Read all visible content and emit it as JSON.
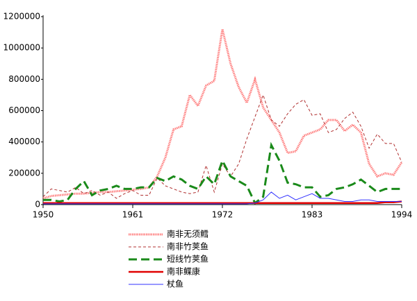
{
  "chart_data": {
    "type": "line",
    "x": [
      1950,
      1951,
      1952,
      1953,
      1954,
      1955,
      1956,
      1957,
      1958,
      1959,
      1960,
      1961,
      1962,
      1963,
      1964,
      1965,
      1966,
      1967,
      1968,
      1969,
      1970,
      1971,
      1972,
      1973,
      1974,
      1975,
      1976,
      1977,
      1978,
      1979,
      1980,
      1981,
      1982,
      1983,
      1984,
      1985,
      1986,
      1987,
      1988,
      1989,
      1990,
      1991,
      1992,
      1993,
      1994
    ],
    "xlim": [
      1950,
      1994
    ],
    "xticks": [
      1950,
      1961,
      1972,
      1983,
      1994
    ],
    "ylim": [
      0,
      1200000
    ],
    "yticks": [
      0,
      200000,
      400000,
      600000,
      800000,
      1000000,
      1200000
    ],
    "grid": false,
    "series": [
      {
        "name": "南非无须鳕",
        "color": "#ff6f6f",
        "line_style": "dotted",
        "values": [
          40000,
          55000,
          60000,
          65000,
          70000,
          70000,
          75000,
          80000,
          80000,
          85000,
          90000,
          95000,
          100000,
          110000,
          180000,
          300000,
          480000,
          500000,
          700000,
          630000,
          760000,
          790000,
          1120000,
          900000,
          750000,
          650000,
          800000,
          620000,
          540000,
          460000,
          330000,
          340000,
          440000,
          460000,
          480000,
          540000,
          540000,
          470000,
          510000,
          460000,
          260000,
          180000,
          200000,
          190000,
          270000
        ]
      },
      {
        "name": "南非竹荚鱼",
        "color": "#b03030",
        "line_style": "dashed",
        "values": [
          50000,
          100000,
          90000,
          80000,
          110000,
          70000,
          90000,
          60000,
          80000,
          40000,
          70000,
          90000,
          60000,
          60000,
          170000,
          120000,
          100000,
          80000,
          70000,
          80000,
          250000,
          80000,
          260000,
          180000,
          260000,
          420000,
          560000,
          700000,
          540000,
          500000,
          580000,
          640000,
          670000,
          570000,
          580000,
          460000,
          480000,
          550000,
          590000,
          500000,
          360000,
          450000,
          390000,
          390000,
          270000
        ]
      },
      {
        "name": "短线竹荚鱼",
        "color": "#1a8a1a",
        "line_style": "long-dashed",
        "values": [
          30000,
          30000,
          20000,
          30000,
          100000,
          150000,
          60000,
          90000,
          100000,
          120000,
          100000,
          100000,
          110000,
          110000,
          170000,
          150000,
          180000,
          160000,
          120000,
          100000,
          180000,
          130000,
          280000,
          180000,
          150000,
          120000,
          10000,
          50000,
          380000,
          280000,
          140000,
          130000,
          110000,
          110000,
          50000,
          60000,
          100000,
          110000,
          130000,
          160000,
          120000,
          80000,
          100000,
          100000,
          100000
        ]
      },
      {
        "name": "南非鲽康",
        "color": "#e00000",
        "line_style": "solid",
        "values": [
          10000,
          10000,
          10000,
          10000,
          10000,
          10000,
          10000,
          10000,
          10000,
          10000,
          10000,
          10000,
          10000,
          10000,
          10000,
          10000,
          10000,
          10000,
          10000,
          10000,
          10000,
          10000,
          10000,
          10000,
          10000,
          10000,
          10000,
          10000,
          10000,
          10000,
          10000,
          10000,
          10000,
          10000,
          10000,
          10000,
          10000,
          10000,
          10000,
          10000,
          10000,
          10000,
          15000,
          15000,
          20000
        ]
      },
      {
        "name": "杖鱼",
        "color": "#3030ff",
        "line_style": "thin",
        "values": [
          5000,
          5000,
          5000,
          5000,
          5000,
          5000,
          5000,
          5000,
          5000,
          5000,
          5000,
          5000,
          5000,
          5000,
          5000,
          5000,
          5000,
          5000,
          5000,
          5000,
          5000,
          5000,
          5000,
          5000,
          5000,
          5000,
          10000,
          30000,
          80000,
          40000,
          60000,
          30000,
          50000,
          70000,
          40000,
          40000,
          30000,
          20000,
          20000,
          30000,
          30000,
          20000,
          20000,
          20000,
          20000
        ]
      }
    ]
  }
}
